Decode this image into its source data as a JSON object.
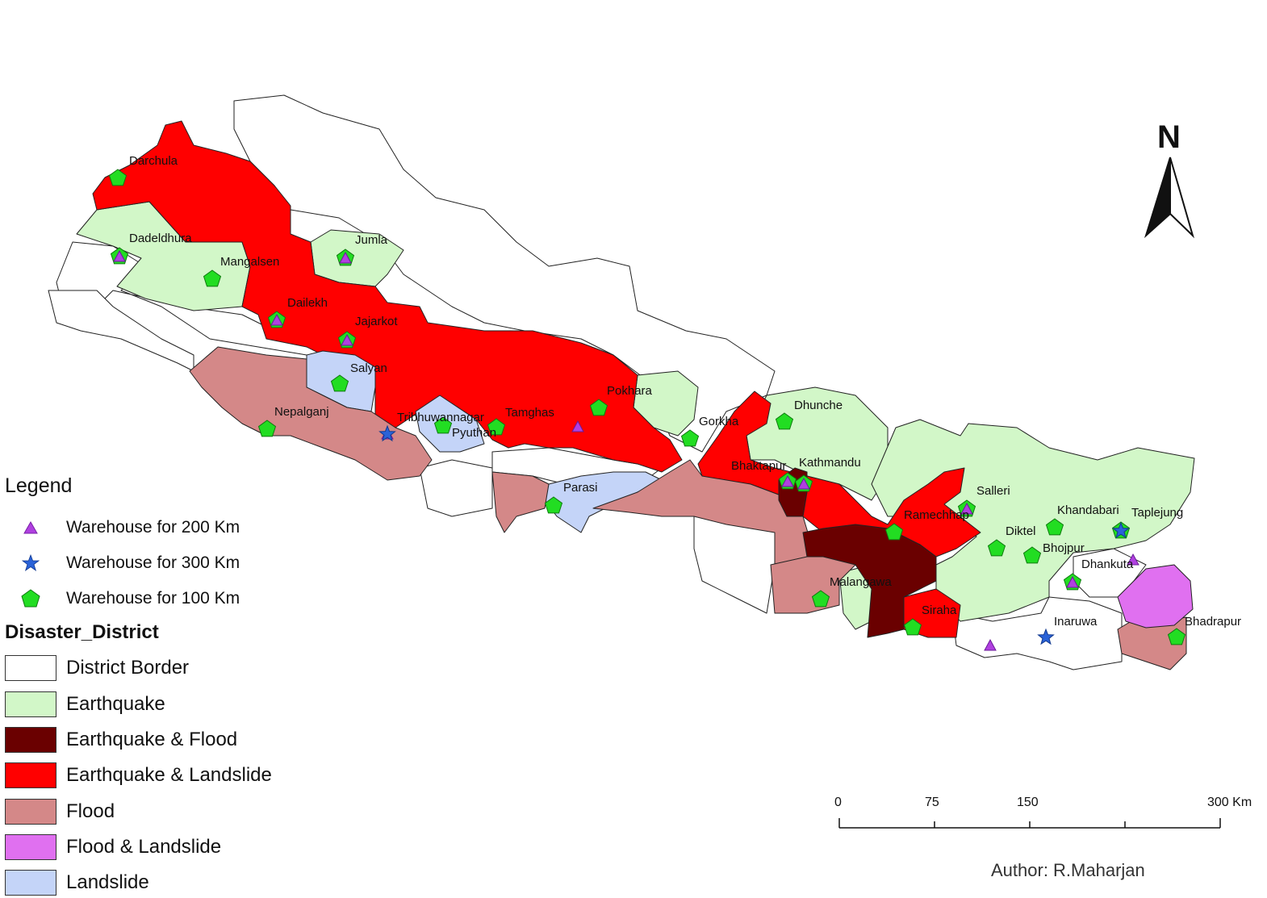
{
  "legend": {
    "title": "Legend",
    "warehouses": [
      {
        "label": "Warehouse for 200 Km",
        "symbol": "triangle",
        "color": "#b040e0"
      },
      {
        "label": "Warehouse for 300 Km",
        "symbol": "star",
        "color": "#2a62d8"
      },
      {
        "label": "Warehouse for 100 Km",
        "symbol": "pentagon",
        "color": "#22dd22"
      }
    ],
    "class_title": "Disaster_District",
    "classes": [
      {
        "label": "District Border",
        "color": "#ffffff"
      },
      {
        "label": "Earthquake",
        "color": "#d2f7c8"
      },
      {
        "label": "Earthquake & Flood",
        "color": "#6a0000"
      },
      {
        "label": "Earthquake & Landslide",
        "color": "#ff0000"
      },
      {
        "label": "Flood",
        "color": "#d48888"
      },
      {
        "label": "Flood & Landslide",
        "color": "#e070f0"
      },
      {
        "label": "Landslide",
        "color": "#c4d4f8"
      }
    ]
  },
  "places": [
    "Darchula",
    "Dadeldhura",
    "Mangalsen",
    "Jumla",
    "Dailekh",
    "Jajarkot",
    "Salyan",
    "Nepalganj",
    "Tribhuwannagar",
    "Pyuthan",
    "Tamghas",
    "Pokhara",
    "Gorkha",
    "Dhunche",
    "Bhaktapur",
    "Kathmandu",
    "Parasi",
    "Salleri",
    "Ramechhap",
    "Khandabari",
    "Taplejung",
    "Diktel",
    "Bhojpur",
    "Dhankuta",
    "Malangawa",
    "Siraha",
    "Inaruwa",
    "Bhadrapur"
  ],
  "north_arrow": {
    "label": "N"
  },
  "scale_bar": {
    "ticks": [
      "0",
      "75",
      "150"
    ],
    "end_label": "300 Km"
  },
  "author": "Author: R.Maharjan"
}
